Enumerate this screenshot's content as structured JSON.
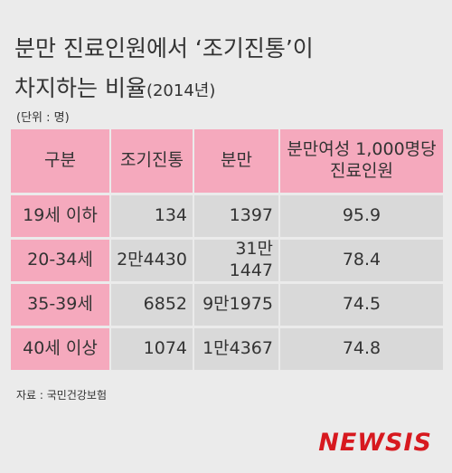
{
  "header": {
    "title_line1": "분만 진료인원에서 ‘조기진통’이",
    "title_line2": "차지하는 비율",
    "title_suffix": "(2014년)",
    "unit": "(단위 : 명)"
  },
  "table": {
    "columns": [
      "구분",
      "조기진통",
      "분만",
      "분만여성 1,000명당\n진료인원"
    ],
    "rows": [
      [
        "19세 이하",
        "134",
        "1397",
        "95.9"
      ],
      [
        "20-34세",
        "2만4430",
        "31만1447",
        "78.4"
      ],
      [
        "35-39세",
        "6852",
        "9만1975",
        "74.5"
      ],
      [
        "40세 이상",
        "1074",
        "1만4367",
        "74.8"
      ]
    ]
  },
  "footer": {
    "source": "자료 : 국민건강보험",
    "logo": "NEWSIS"
  }
}
